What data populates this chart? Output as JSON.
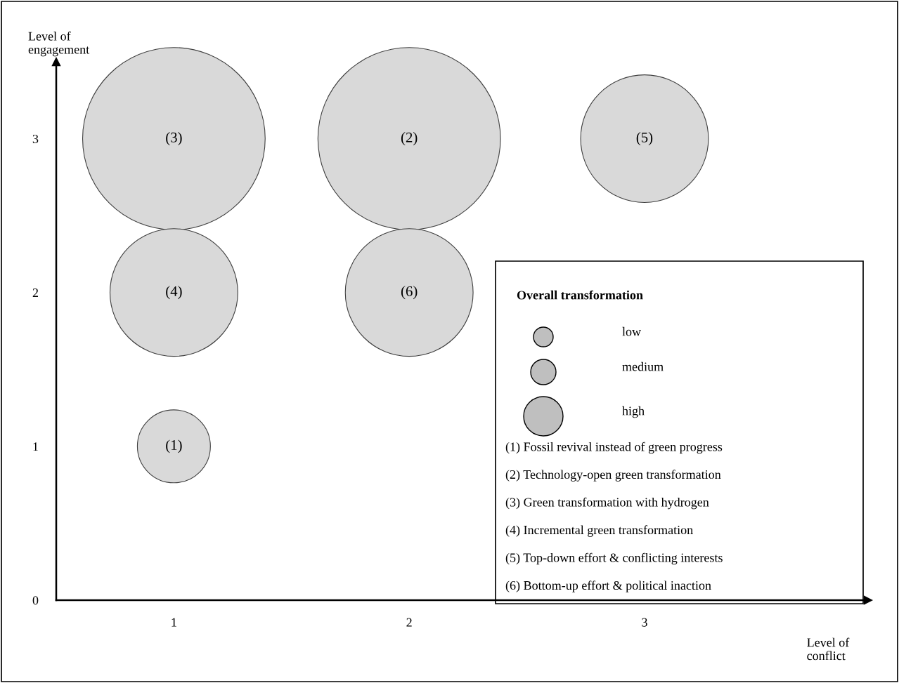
{
  "chart_data": {
    "type": "bubble",
    "xlabel": "Level of\nconflict",
    "ylabel": "Level of\nengagement",
    "series": [
      {
        "name": "(1)",
        "color": "#d9d9d9",
        "x": [
          1
        ],
        "values": [
          1
        ],
        "sizes": [
          0.16
        ]
      },
      {
        "name": "(2)",
        "color": "#d9d9d9",
        "x": [
          2
        ],
        "values": [
          3
        ],
        "sizes": [
          1
        ]
      },
      {
        "name": "(3)",
        "color": "#d9d9d9",
        "x": [
          1
        ],
        "values": [
          3
        ],
        "sizes": [
          1
        ]
      },
      {
        "name": "(4)",
        "color": "#d9d9d9",
        "x": [
          1
        ],
        "values": [
          2
        ],
        "sizes": [
          0.49
        ]
      },
      {
        "name": "(5)",
        "color": "#d9d9d9",
        "x": [
          3
        ],
        "values": [
          3
        ],
        "sizes": [
          0.49
        ]
      },
      {
        "name": "(6)",
        "color": "#d9d9d9",
        "x": [
          2
        ],
        "values": [
          2
        ],
        "sizes": [
          0.49
        ]
      }
    ],
    "xlim": [
      0.5,
      3.95
    ],
    "xticks": [
      1,
      2,
      3
    ],
    "ylim": [
      0,
      3.5
    ],
    "yticks": [
      0,
      1,
      2,
      3
    ],
    "grid": false,
    "annotations": [
      "Overall transformation",
      "low",
      "medium",
      "high",
      "(1) Fossil revival instead of green progress",
      "(2) Technology-open green transformation",
      "(3) Green transformation with hydrogen",
      "(4) Incremental green transformation",
      "(5) Top-down effort & conflicting interests",
      "(6) Bottom-up effort & political inaction"
    ]
  }
}
